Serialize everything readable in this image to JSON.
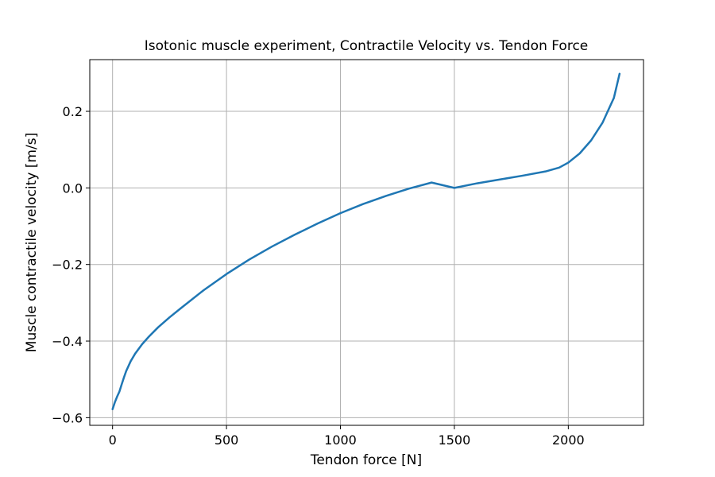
{
  "chart_data": {
    "type": "line",
    "title": "Isotonic muscle experiment, Contractile Velocity vs. Tendon Force",
    "xlabel": "Tendon force [N]",
    "ylabel": "Muscle contractile velocity [m/s]",
    "xlim": [
      -100,
      2330
    ],
    "ylim": [
      -0.62,
      0.335
    ],
    "xticks": [
      0,
      500,
      1000,
      1500,
      2000
    ],
    "xtick_labels": [
      "0",
      "500",
      "1000",
      "1500",
      "2000"
    ],
    "yticks": [
      -0.6,
      -0.4,
      -0.2,
      0.0,
      0.2
    ],
    "ytick_labels": [
      "−0.6",
      "−0.4",
      "−0.2",
      "0.0",
      "0.2"
    ],
    "grid": true,
    "series": [
      {
        "color": "#1f77b4",
        "x": [
          0,
          10,
          20,
          30,
          40,
          50,
          60,
          80,
          100,
          130,
          160,
          200,
          250,
          300,
          400,
          500,
          600,
          700,
          800,
          900,
          1000,
          1100,
          1200,
          1300,
          1400,
          1500,
          1600,
          1700,
          1800,
          1900,
          1960,
          2000,
          2050,
          2100,
          2150,
          2200,
          2225
        ],
        "y": [
          -0.578,
          -0.56,
          -0.545,
          -0.532,
          -0.513,
          -0.495,
          -0.478,
          -0.452,
          -0.432,
          -0.408,
          -0.388,
          -0.364,
          -0.338,
          -0.314,
          -0.267,
          -0.225,
          -0.187,
          -0.153,
          -0.122,
          -0.093,
          -0.066,
          -0.042,
          -0.021,
          -0.002,
          0.014,
          0.0,
          0.012,
          0.022,
          0.032,
          0.043,
          0.053,
          0.066,
          0.09,
          0.124,
          0.17,
          0.235,
          0.298
        ]
      }
    ]
  }
}
